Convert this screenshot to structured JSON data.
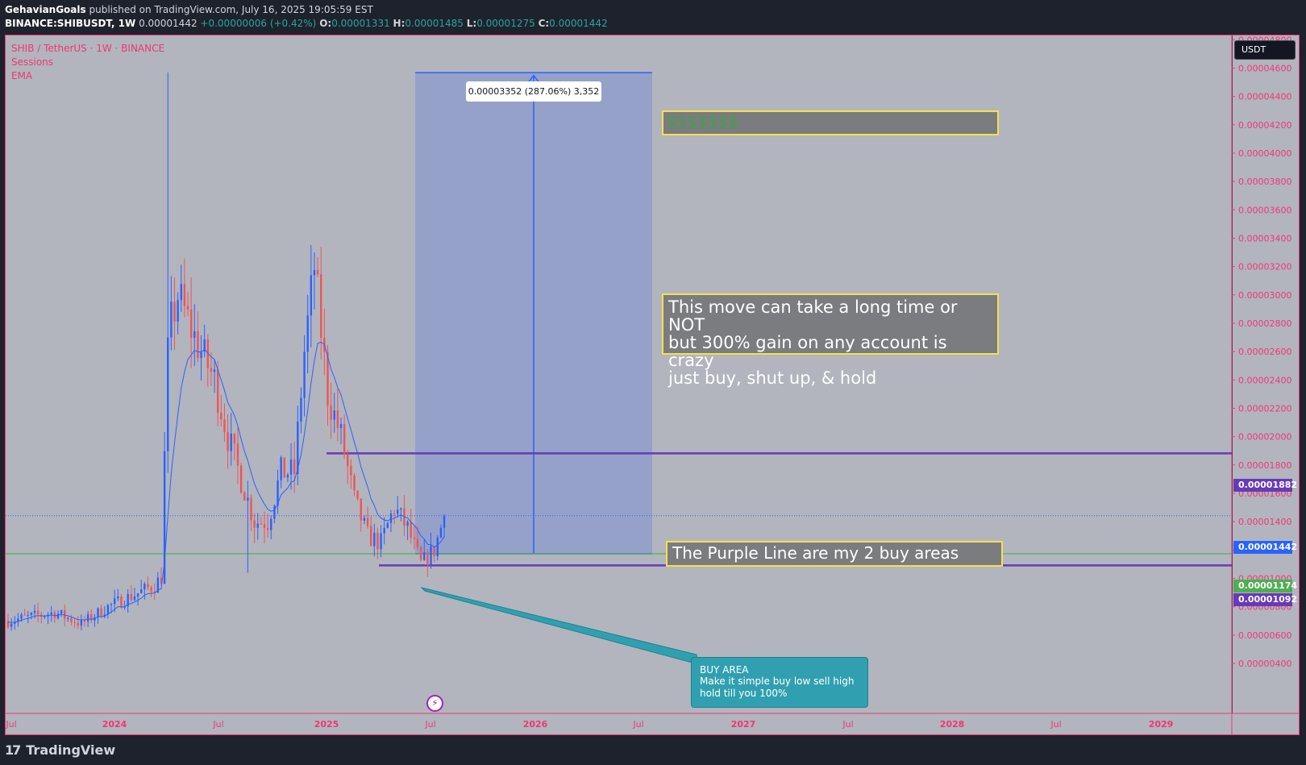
{
  "header": {
    "author": "GehavianGoals",
    "published": "published on TradingView.com, July 16, 2025 19:05:59 EST",
    "symbol": "BINANCE:SHIBUSDT, 1W",
    "last": "0.00001442",
    "change": "+0.00000006 (+0.42%)",
    "o_label": "O:",
    "o_value": "0.00001331",
    "h_label": "H:",
    "h_value": "0.00001485",
    "l_label": "L:",
    "l_value": "0.00001275",
    "c_label": "C:",
    "c_value": "0.00001442"
  },
  "legend": {
    "title": "SHIB / TetherUS · 1W · BINANCE",
    "sessions": "Sessions",
    "ema": "EMA"
  },
  "unit_button": "USDT",
  "price_scale": {
    "min": 3e-06,
    "max": 4.9e-05,
    "ticks": [
      "0.00000400",
      "0.00000600",
      "0.00000800",
      "0.00001000",
      "0.00001200",
      "0.00001400",
      "0.00001600",
      "0.00001800",
      "0.00002000",
      "0.00002200",
      "0.00002400",
      "0.00002600",
      "0.00002800",
      "0.00003000",
      "0.00003200",
      "0.00003400",
      "0.00003600",
      "0.00003800",
      "0.00004000",
      "0.00004200",
      "0.00004400",
      "0.00004600",
      "0.00004800"
    ]
  },
  "time_axis": {
    "labels": [
      "Jul",
      "2024",
      "Jul",
      "2025",
      "Jul",
      "2026",
      "Jul",
      "2027",
      "Jul",
      "2028",
      "Jul",
      "2029"
    ],
    "bold": [
      false,
      true,
      false,
      true,
      false,
      true,
      false,
      true,
      false,
      true,
      false,
      true
    ]
  },
  "price_tags": {
    "upper_purple": "0.00001882",
    "current": "0.00001442",
    "green": "0.00001174",
    "lower_purple": "0.00001092"
  },
  "measure_label": "0.00003352 (287.06%) 3,352",
  "notes": {
    "dollars": "$$$$$$$",
    "move_line1": "This move can take a long time or NOT",
    "move_line2": "but 300% gain on any account is crazy",
    "move_line3": "just buy, shut up, & hold",
    "purple": "The Purple Line are my 2 buy areas"
  },
  "buy_area": {
    "title": "BUY AREA",
    "line1": "Make it simple buy low sell high",
    "line2": "hold till you 100%"
  },
  "flash_icon": "lightning-icon",
  "brand": "TradingView",
  "colors": {
    "up": "#2962ff",
    "down": "#f05454",
    "ema": "#2962ff",
    "purple": "#673ab7",
    "green": "#4caf50",
    "accent": "#f23674"
  }
}
